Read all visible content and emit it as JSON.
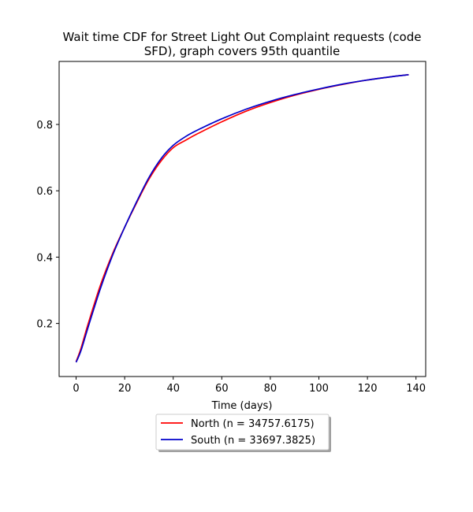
{
  "chart_data": {
    "type": "line",
    "title_lines": [
      "Wait time CDF for Street Light Out Complaint  requests (code",
      "SFD), graph covers 95th quantile"
    ],
    "xlabel": "Time (days)",
    "ylabel": "",
    "xlim": [
      -7,
      144
    ],
    "ylim": [
      0.04,
      0.99
    ],
    "x_ticks": [
      0,
      20,
      40,
      60,
      80,
      100,
      120,
      140
    ],
    "y_ticks": [
      0.2,
      0.4,
      0.6,
      0.8
    ],
    "x_tick_labels": [
      "0",
      "20",
      "40",
      "60",
      "80",
      "100",
      "120",
      "140"
    ],
    "y_tick_labels": [
      "0.2",
      "0.4",
      "0.6",
      "0.8"
    ],
    "grid": false,
    "legend_position": "below-center",
    "series": [
      {
        "name": "North (n = 34757.6175)",
        "color": "#ff0000",
        "x": [
          0,
          2,
          5,
          10,
          15,
          20,
          25,
          30,
          35,
          40,
          45,
          50,
          60,
          70,
          80,
          90,
          100,
          110,
          120,
          130,
          137
        ],
        "y": [
          0.085,
          0.125,
          0.2,
          0.315,
          0.41,
          0.49,
          0.565,
          0.635,
          0.69,
          0.73,
          0.752,
          0.772,
          0.808,
          0.84,
          0.866,
          0.888,
          0.906,
          0.921,
          0.934,
          0.944,
          0.95
        ]
      },
      {
        "name": "South (n = 33697.3825)",
        "color": "#0000cc",
        "x": [
          0,
          2,
          5,
          10,
          15,
          20,
          25,
          30,
          35,
          40,
          45,
          50,
          60,
          70,
          80,
          90,
          100,
          110,
          120,
          130,
          137
        ],
        "y": [
          0.083,
          0.118,
          0.19,
          0.305,
          0.405,
          0.49,
          0.568,
          0.64,
          0.697,
          0.737,
          0.763,
          0.783,
          0.817,
          0.846,
          0.87,
          0.89,
          0.907,
          0.922,
          0.934,
          0.944,
          0.95
        ]
      }
    ]
  }
}
